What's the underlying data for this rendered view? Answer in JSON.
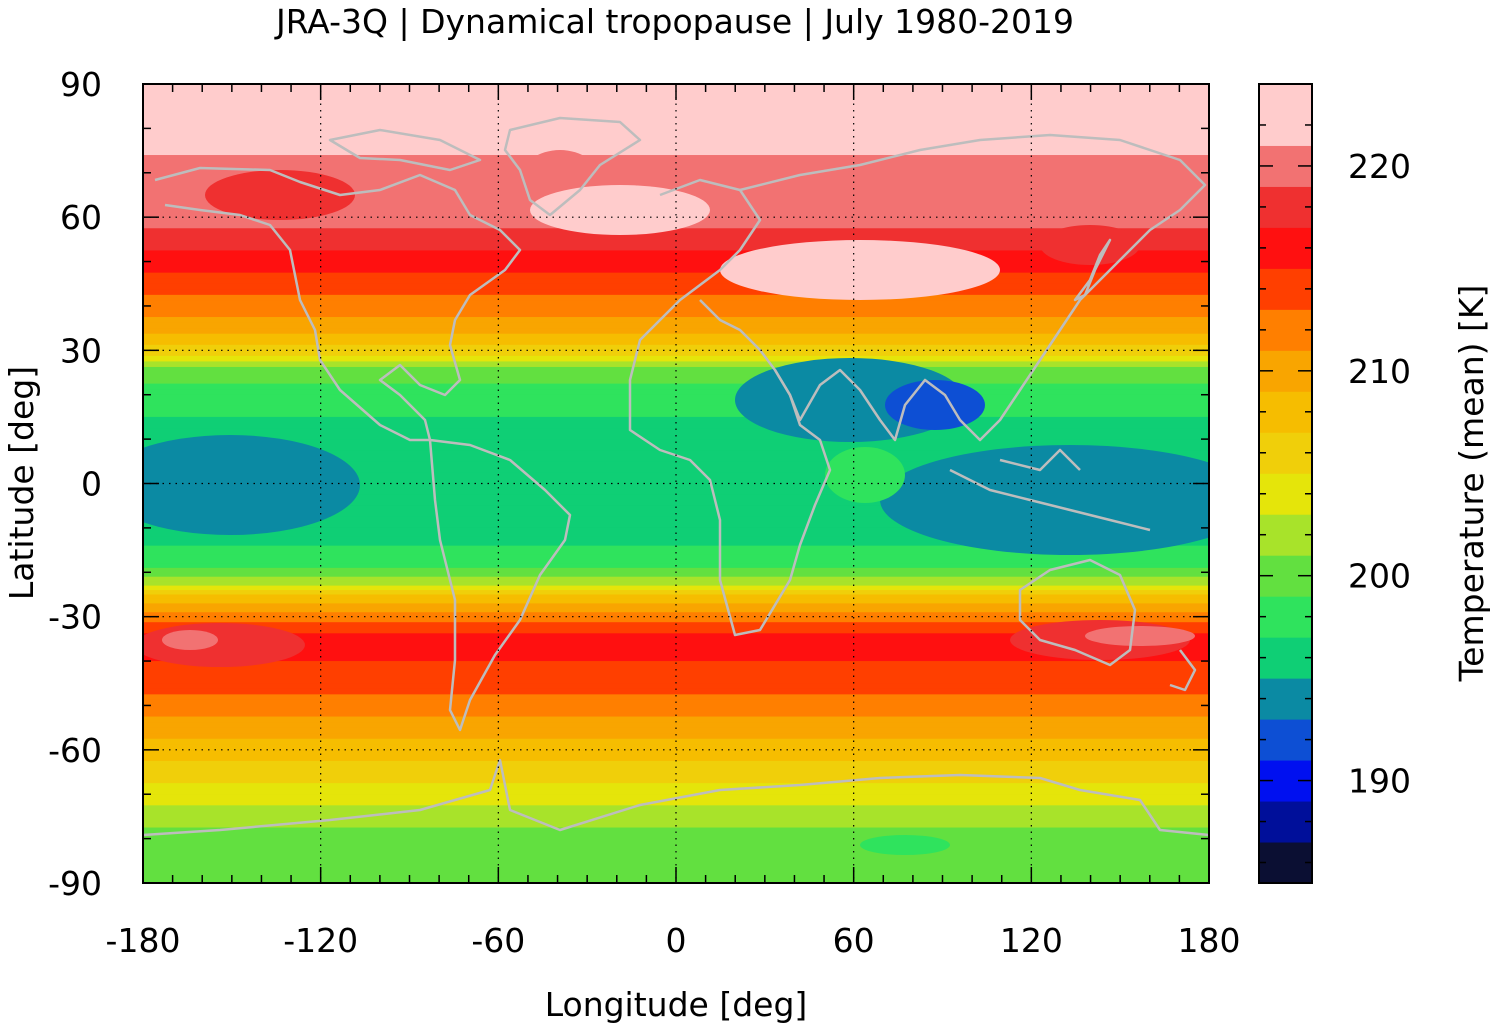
{
  "title": "JRA-3Q | Dynamical tropopause | July 1980-2019",
  "chart_data": {
    "type": "heatmap",
    "title": "JRA-3Q | Dynamical tropopause | July 1980-2019",
    "xlabel": "Longitude [deg]",
    "ylabel": "Latitude [deg]",
    "xlim": [
      -180,
      180
    ],
    "ylim": [
      -90,
      90
    ],
    "x_ticks": [
      "-180",
      "-120",
      "-60",
      "0",
      "60",
      "120",
      "180"
    ],
    "y_ticks": [
      "90",
      "60",
      "30",
      "0",
      "-30",
      "-60",
      "-90"
    ],
    "grid": true,
    "grid_style": "dotted",
    "overlay": "coastlines (grey)",
    "colorbar": {
      "label": "Temperature (mean) [K]",
      "range": [
        185,
        224
      ],
      "tick_labels": [
        "220",
        "210",
        "200",
        "190"
      ],
      "levels": [
        {
          "value": 186,
          "color": "#0b0f33"
        },
        {
          "value": 188,
          "color": "#000f9a"
        },
        {
          "value": 190,
          "color": "#0010f0"
        },
        {
          "value": 192,
          "color": "#0d4fd4"
        },
        {
          "value": 194,
          "color": "#0b8aa3"
        },
        {
          "value": 196,
          "color": "#0fcf75"
        },
        {
          "value": 198,
          "color": "#2fe35d"
        },
        {
          "value": 200,
          "color": "#62e040"
        },
        {
          "value": 202,
          "color": "#a8e32a"
        },
        {
          "value": 204,
          "color": "#e5e50a"
        },
        {
          "value": 206,
          "color": "#f0cf0a"
        },
        {
          "value": 208,
          "color": "#f6bd00"
        },
        {
          "value": 210,
          "color": "#f9a500"
        },
        {
          "value": 212,
          "color": "#ff7f00"
        },
        {
          "value": 214,
          "color": "#ff3f00"
        },
        {
          "value": 216,
          "color": "#ff1010"
        },
        {
          "value": 218,
          "color": "#ef3030"
        },
        {
          "value": 220,
          "color": "#f27272"
        },
        {
          "value": 222,
          "color": "#ffcccc"
        }
      ]
    },
    "zonal_structure": [
      {
        "lat": 90,
        "value": 222
      },
      {
        "lat": 78,
        "value": 222
      },
      {
        "lat": 70,
        "value": 220
      },
      {
        "lat": 60,
        "value": 220
      },
      {
        "lat": 50,
        "value": 216
      },
      {
        "lat": 45,
        "value": 214
      },
      {
        "lat": 40,
        "value": 212
      },
      {
        "lat": 35,
        "value": 210
      },
      {
        "lat": 30,
        "value": 206
      },
      {
        "lat": 25,
        "value": 200
      },
      {
        "lat": 20,
        "value": 198
      },
      {
        "lat": 10,
        "value": 196
      },
      {
        "lat": 0,
        "value": 196
      },
      {
        "lat": -10,
        "value": 196
      },
      {
        "lat": -18,
        "value": 198
      },
      {
        "lat": -22,
        "value": 202
      },
      {
        "lat": -26,
        "value": 208
      },
      {
        "lat": -30,
        "value": 212
      },
      {
        "lat": -35,
        "value": 216
      },
      {
        "lat": -45,
        "value": 214
      },
      {
        "lat": -50,
        "value": 212
      },
      {
        "lat": -55,
        "value": 210
      },
      {
        "lat": -60,
        "value": 208
      },
      {
        "lat": -65,
        "value": 206
      },
      {
        "lat": -70,
        "value": 204
      },
      {
        "lat": -75,
        "value": 202
      },
      {
        "lat": -80,
        "value": 200
      },
      {
        "lat": -90,
        "value": 200
      }
    ]
  }
}
